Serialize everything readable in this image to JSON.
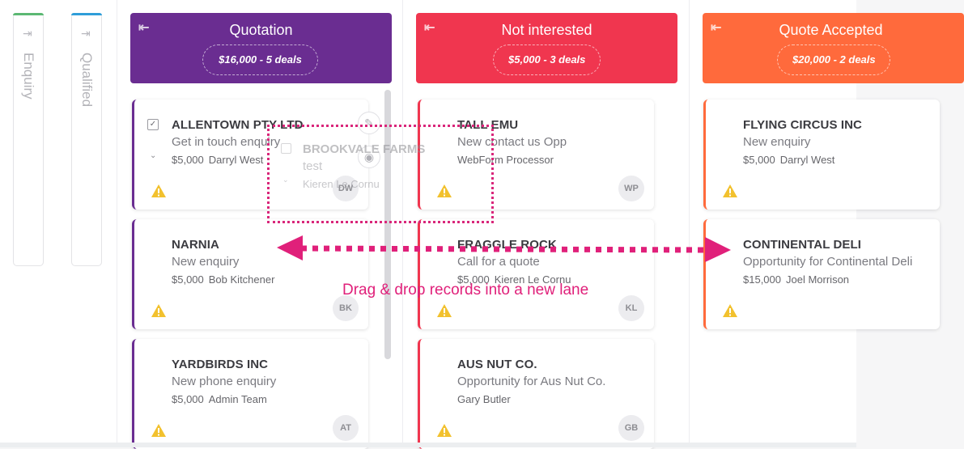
{
  "colors": {
    "enquiry": "#5cb873",
    "qualified": "#2f9ed9",
    "quotation": "#6a2d91",
    "not_interested": "#f0364f",
    "quote_accepted": "#ff6a3c",
    "annotation": "#e0207a",
    "warning": "#f2c12e"
  },
  "collapsed_lanes": [
    {
      "label": "Enquiry",
      "icon": "expand-right-icon"
    },
    {
      "label": "Qualified",
      "icon": "expand-right-icon"
    }
  ],
  "lanes": [
    {
      "title": "Quotation",
      "summary": "$16,000 - 5 deals",
      "cards": [
        {
          "name": "ALLENTOWN PTY LTD",
          "desc": "Get in touch enquiry",
          "value": "$5,000",
          "owner": "Darryl West",
          "initials": "DW"
        },
        {
          "name": "NARNIA",
          "desc": "New enquiry",
          "value": "$5,000",
          "owner": "Bob Kitchener",
          "initials": "BK"
        },
        {
          "name": "YARDBIRDS INC",
          "desc": "New phone enquiry",
          "value": "$5,000",
          "owner": "Admin Team",
          "initials": "AT"
        }
      ]
    },
    {
      "title": "Not interested",
      "summary": "$5,000 - 3 deals",
      "cards": [
        {
          "name": "TALL EMU",
          "desc": "New contact us Opp",
          "value": "",
          "owner": "WebForm Processor",
          "initials": "WP"
        },
        {
          "name": "FRAGGLE ROCK",
          "desc": "Call for a quote",
          "value": "$5,000",
          "owner": "Kieren Le Cornu",
          "initials": "KL"
        },
        {
          "name": "AUS NUT CO.",
          "desc": "Opportunity for Aus Nut Co.",
          "value": "",
          "owner": "Gary Butler",
          "initials": "GB"
        }
      ]
    },
    {
      "title": "Quote Accepted",
      "summary": "$20,000 - 2 deals",
      "cards": [
        {
          "name": "FLYING CIRCUS INC",
          "desc": "New enquiry",
          "value": "$5,000",
          "owner": "Darryl West",
          "initials": ""
        },
        {
          "name": "CONTINENTAL DELI",
          "desc": "Opportunity for Continental Deli",
          "value": "$15,000",
          "owner": "Joel Morrison",
          "initials": ""
        }
      ]
    }
  ],
  "dragging_card": {
    "name": "BROOKVALE FARMS",
    "desc": "test",
    "owner": "Kieren Le Cornu"
  },
  "annotation": {
    "caption": "Drag & drop records into a new lane"
  }
}
